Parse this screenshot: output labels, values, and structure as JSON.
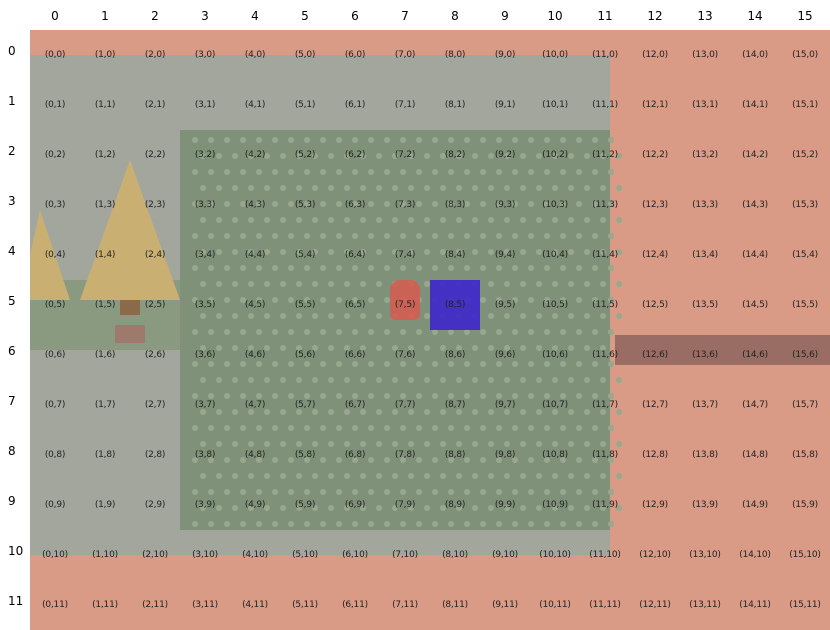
{
  "grid": {
    "cols": 16,
    "rows": 12,
    "col_headers": [
      "0",
      "1",
      "2",
      "3",
      "4",
      "5",
      "6",
      "7",
      "8",
      "9",
      "10",
      "11",
      "12",
      "13",
      "14",
      "15"
    ],
    "row_headers": [
      "0",
      "1",
      "2",
      "3",
      "4",
      "5",
      "6",
      "7",
      "8",
      "9",
      "10",
      "11"
    ]
  },
  "colors": {
    "ground": "#d99a86",
    "path": "#a2a69c",
    "grass": "#7b8d74",
    "tree": "#c9b072",
    "ledge": "#9a6d64",
    "player_cursor": "#3a1fd0",
    "npc": "#d45d52"
  },
  "entities": {
    "player": {
      "icon": "player-cursor-square",
      "tile": [
        8,
        5
      ]
    },
    "npc": {
      "icon": "trainer-sprite",
      "tile": [
        7,
        5
      ]
    }
  }
}
